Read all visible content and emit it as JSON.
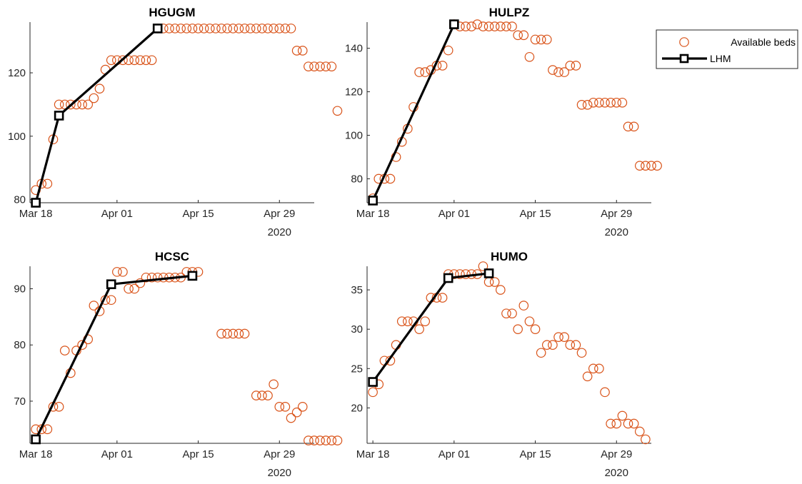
{
  "colors": {
    "marker": "#d95319",
    "line": "#000000",
    "axis": "#262626"
  },
  "legend": {
    "placement": "top-right",
    "items": [
      "Available beds",
      "LHM"
    ]
  },
  "chart_data": [
    {
      "type": "scatter",
      "title": "HGUGM",
      "x_start": "2020-03-18",
      "x_ticks": [
        "Mar 18",
        "Apr 01",
        "Apr 15",
        "Apr 29"
      ],
      "x_year": "2020",
      "xlim": [
        "2020-03-17",
        "2020-05-05"
      ],
      "ylim": [
        79,
        136
      ],
      "yticks": [
        80,
        100,
        120
      ],
      "series": [
        {
          "name": "Available beds",
          "kind": "markers",
          "values": [
            83,
            85,
            85,
            99,
            110,
            110,
            110,
            110,
            110,
            110,
            112,
            115,
            121,
            124,
            124,
            124,
            124,
            124,
            124,
            124,
            124,
            134,
            134,
            134,
            134,
            134,
            134,
            134,
            134,
            134,
            134,
            134,
            134,
            134,
            134,
            134,
            134,
            134,
            134,
            134,
            134,
            134,
            134,
            134,
            134,
            127,
            127,
            122,
            122,
            122,
            122,
            122,
            108
          ]
        },
        {
          "name": "LHM",
          "kind": "line",
          "points": [
            [
              "2020-03-18",
              79
            ],
            [
              "2020-03-22",
              106.5
            ],
            [
              "2020-04-08",
              134
            ]
          ]
        }
      ]
    },
    {
      "type": "scatter",
      "title": "HULPZ",
      "x_start": "2020-03-18",
      "x_ticks": [
        "Mar 18",
        "Apr 01",
        "Apr 15",
        "Apr 29"
      ],
      "x_year": "2020",
      "xlim": [
        "2020-03-17",
        "2020-05-05"
      ],
      "ylim": [
        69,
        152
      ],
      "yticks": [
        80,
        100,
        120,
        140
      ],
      "series": [
        {
          "name": "Available beds",
          "kind": "markers",
          "values": [
            71,
            80,
            80,
            80,
            90,
            97,
            103,
            113,
            129,
            129,
            130,
            132,
            132,
            139,
            151,
            150,
            150,
            150,
            151,
            150,
            150,
            150,
            150,
            150,
            150,
            146,
            146,
            136,
            144,
            144,
            144,
            130,
            129,
            129,
            132,
            132,
            114,
            114,
            115,
            115,
            115,
            115,
            115,
            115,
            104,
            104,
            86,
            86,
            86,
            86
          ]
        },
        {
          "name": "LHM",
          "kind": "line",
          "points": [
            [
              "2020-03-18",
              70
            ],
            [
              "2020-04-01",
              151
            ]
          ]
        }
      ]
    },
    {
      "type": "scatter",
      "title": "HCSC",
      "x_start": "2020-03-18",
      "x_ticks": [
        "Mar 18",
        "Apr 01",
        "Apr 15",
        "Apr 29"
      ],
      "x_year": "2020",
      "xlim": [
        "2020-03-17",
        "2020-05-05"
      ],
      "ylim": [
        62.5,
        94
      ],
      "yticks": [
        70,
        80,
        90
      ],
      "series": [
        {
          "name": "Available beds",
          "kind": "markers",
          "values": [
            65,
            65,
            65,
            69,
            69,
            79,
            75,
            79,
            80,
            81,
            87,
            86,
            88,
            88,
            93,
            93,
            90,
            90,
            91,
            92,
            92,
            92,
            92,
            92,
            92,
            92,
            93,
            93,
            93,
            null,
            null,
            null,
            82,
            82,
            82,
            82,
            82,
            null,
            71,
            71,
            71,
            73,
            69,
            69,
            67,
            68,
            69,
            63,
            63,
            63,
            63,
            63,
            63
          ]
        },
        {
          "name": "LHM",
          "kind": "line",
          "points": [
            [
              "2020-03-18",
              63.2
            ],
            [
              "2020-03-31",
              90.8
            ],
            [
              "2020-04-14",
              92.3
            ]
          ]
        }
      ]
    },
    {
      "type": "scatter",
      "title": "HUMO",
      "x_start": "2020-03-18",
      "x_ticks": [
        "Mar 18",
        "Apr 01",
        "Apr 15",
        "Apr 29"
      ],
      "x_year": "2020",
      "xlim": [
        "2020-03-17",
        "2020-05-05"
      ],
      "ylim": [
        15.5,
        38
      ],
      "yticks": [
        20,
        25,
        30,
        35
      ],
      "series": [
        {
          "name": "Available beds",
          "kind": "markers",
          "values": [
            22,
            23,
            26,
            26,
            28,
            31,
            31,
            31,
            30,
            31,
            34,
            34,
            34,
            37,
            37,
            37,
            37,
            37,
            37,
            38,
            36,
            36,
            35,
            32,
            32,
            30,
            33,
            31,
            30,
            27,
            28,
            28,
            29,
            29,
            28,
            28,
            27,
            24,
            25,
            25,
            22,
            18,
            18,
            19,
            18,
            18,
            17,
            16
          ]
        },
        {
          "name": "LHM",
          "kind": "line",
          "points": [
            [
              "2020-03-18",
              23.3
            ],
            [
              "2020-03-31",
              36.5
            ],
            [
              "2020-04-07",
              37.1
            ]
          ]
        }
      ]
    }
  ]
}
